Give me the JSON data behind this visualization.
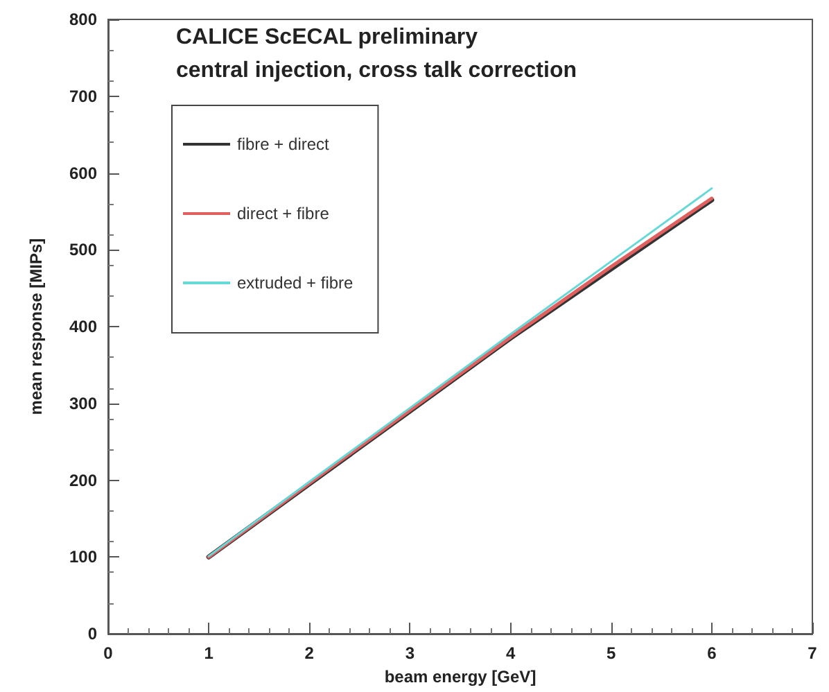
{
  "chart_data": {
    "type": "line",
    "title": "CALICE ScECAL preliminary",
    "subtitle": "central injection, cross talk correction",
    "xlabel": "beam energy [GeV]",
    "ylabel": "mean response [MIPs]",
    "x": [
      1,
      2,
      3,
      4,
      5,
      6
    ],
    "series": [
      {
        "name": "fibre + direct",
        "color": "#333333",
        "values": [
          100,
          195,
          290,
          385,
          475,
          565
        ]
      },
      {
        "name": "direct + fibre",
        "color": "#e06060",
        "values": [
          100,
          196,
          291,
          386,
          478,
          567
        ]
      },
      {
        "name": "extruded + fibre",
        "color": "#66d8d8",
        "values": [
          101,
          198,
          294,
          390,
          485,
          580
        ]
      }
    ],
    "xlim": [
      0,
      7
    ],
    "xticks": [
      0,
      1,
      2,
      3,
      4,
      5,
      6,
      7
    ],
    "ylim": [
      0,
      800
    ],
    "yticks": [
      0,
      100,
      200,
      300,
      400,
      500,
      600,
      700,
      800
    ],
    "grid": false,
    "legend": "top left",
    "marker": "none",
    "line_style": "solid"
  }
}
